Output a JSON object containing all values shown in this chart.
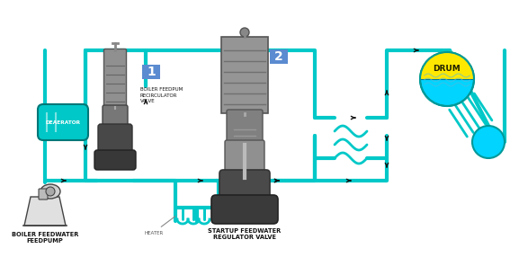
{
  "bg_color": "#ffffff",
  "pipe_color": "#00C8C8",
  "pipe_lw": 3.0,
  "thin_lw": 2.0,
  "labels": {
    "feedpump": "BOILER FEEDWATER\nFEEDPUMP",
    "deaerator": "DEAERATOR",
    "recirculator": "BOILER FEEDPUM\nRECIRCULATOR\nVALVE",
    "startup": "STARTUP FEEDWATER\nREGULATOR VALVE",
    "heater": "HEATER",
    "drum": "DRUM",
    "num1": "1",
    "num2": "2"
  },
  "box1_color": "#5B8BD0",
  "box2_color": "#5B8BD0",
  "drum_yellow": "#FFE800",
  "drum_cyan": "#00D4FF",
  "dae_color": "#00C8C8",
  "valve_gray1": "#888888",
  "valve_gray2": "#666666",
  "valve_dark": "#444444",
  "valve_body": "#333333",
  "pump_gray": "#cccccc",
  "pump_dark": "#555555"
}
